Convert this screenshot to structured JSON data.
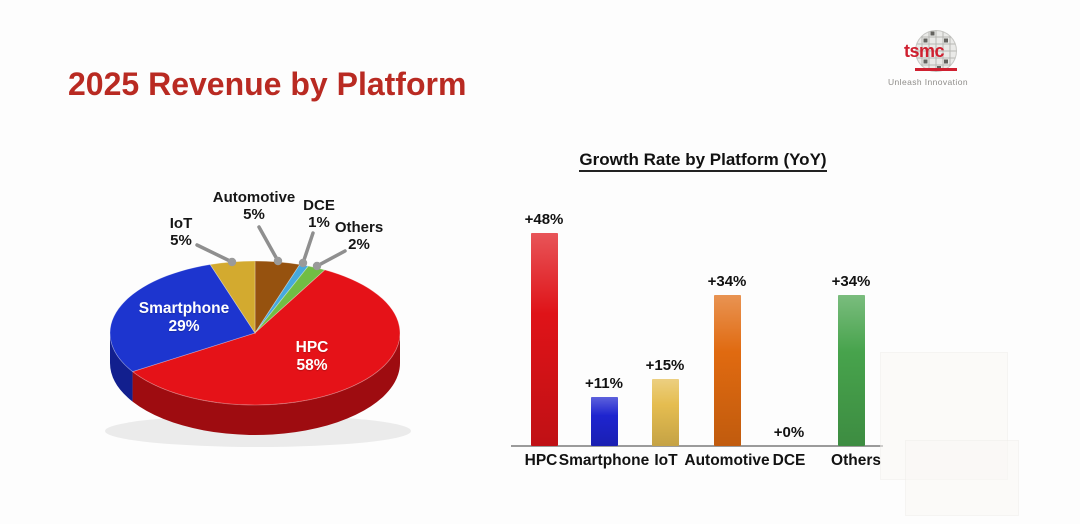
{
  "header": {
    "title": "2025 Revenue by Platform",
    "title_color": "#b92a22",
    "logo_text": "tsmc",
    "logo_tagline": "Unleash Innovation",
    "logo_color": "#cf2030"
  },
  "chart_data": [
    {
      "type": "pie",
      "style": "3d",
      "title": "2025 Revenue by Platform",
      "slices": [
        {
          "label": "HPC",
          "value": 58,
          "display": "58%",
          "color": "#e51218",
          "side_color": "#9e0c10",
          "label_placement": "inside"
        },
        {
          "label": "Smartphone",
          "value": 29,
          "display": "29%",
          "color": "#1d35cf",
          "side_color": "#121f8e",
          "label_placement": "inside"
        },
        {
          "label": "IoT",
          "value": 5,
          "display": "5%",
          "color": "#d3aa2f",
          "side_color": "#9c7c22",
          "label_placement": "outside"
        },
        {
          "label": "Automotive",
          "value": 5,
          "display": "5%",
          "color": "#96520f",
          "side_color": "#6b390a",
          "label_placement": "outside"
        },
        {
          "label": "DCE",
          "value": 1,
          "display": "1%",
          "color": "#46a9de",
          "side_color": "#2f7698",
          "label_placement": "outside"
        },
        {
          "label": "Others",
          "value": 2,
          "display": "2%",
          "color": "#71bd44",
          "side_color": "#4d8a2e",
          "label_placement": "outside"
        }
      ],
      "clockwise_order_from_top": [
        "Automotive",
        "DCE",
        "Others",
        "HPC",
        "Smartphone",
        "IoT"
      ],
      "leader_line_color": "#8f8f8f"
    },
    {
      "type": "bar",
      "title": "Growth Rate by Platform (YoY)",
      "categories": [
        "HPC",
        "Smartphone",
        "IoT",
        "Automotive",
        "DCE",
        "Others"
      ],
      "values": [
        48,
        11,
        15,
        34,
        0,
        34
      ],
      "value_labels": [
        "+48%",
        "+11%",
        "+15%",
        "+34%",
        "+0%",
        "+34%"
      ],
      "colors": [
        "#df1318",
        "#1e24cf",
        "#e5bd50",
        "#e06a10",
        null,
        "#47a34c"
      ],
      "ylim": [
        0,
        50
      ],
      "grid": false,
      "legend": false,
      "axis_color": "#9b9b9b"
    }
  ]
}
